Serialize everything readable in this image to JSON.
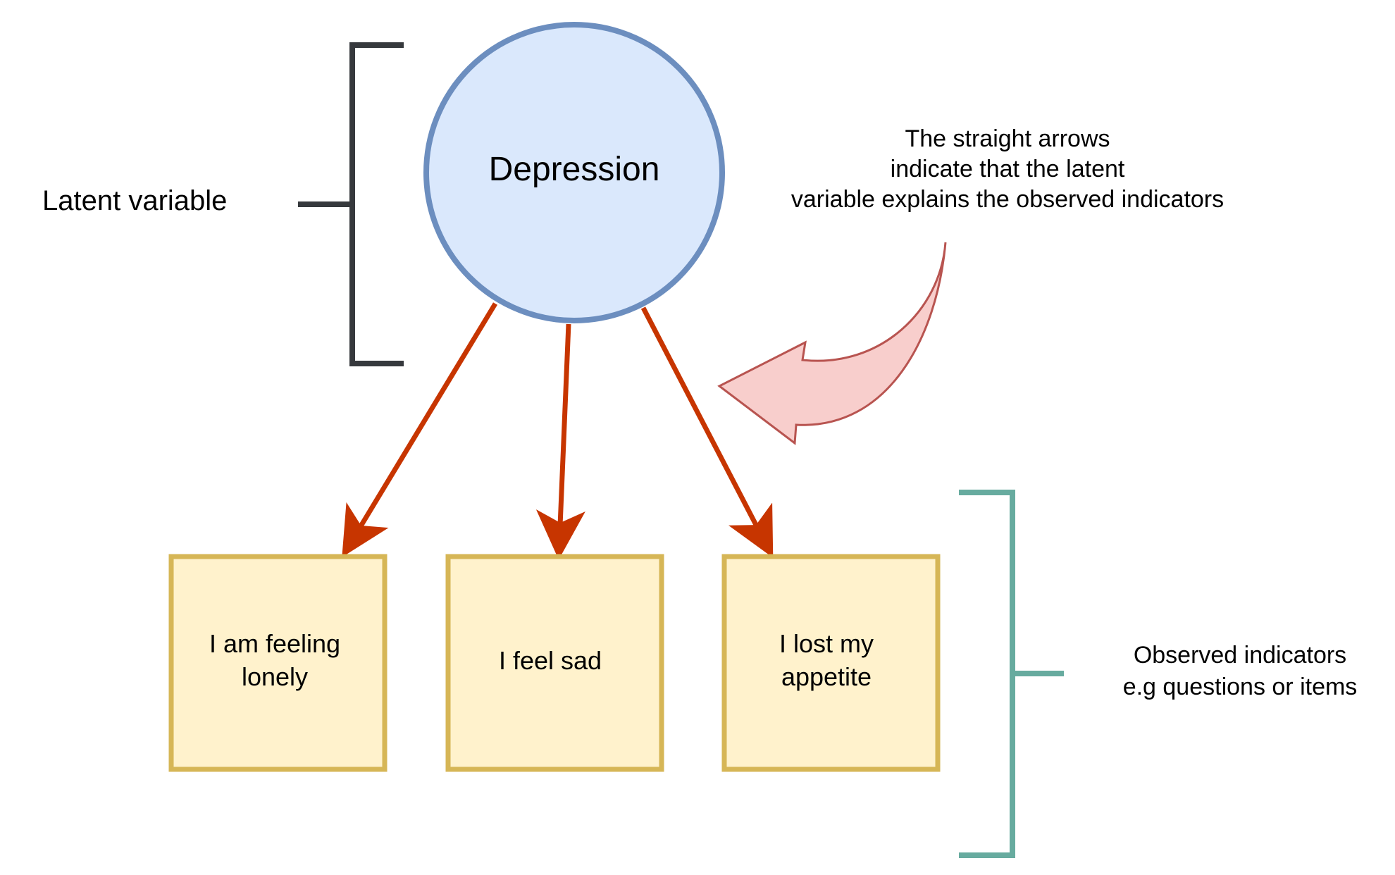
{
  "latent": {
    "label": "Latent variable",
    "node_label": "Depression"
  },
  "annotation": {
    "lines": [
      "The straight arrows",
      "indicate that the latent",
      "variable explains the observed indicators"
    ]
  },
  "indicators": [
    {
      "lines": [
        "I am feeling",
        "lonely"
      ]
    },
    {
      "lines": [
        "I feel sad"
      ]
    },
    {
      "lines": [
        "I lost my",
        "appetite"
      ]
    }
  ],
  "observed": {
    "lines": [
      "Observed  indicators",
      "e.g questions or items"
    ]
  },
  "colors": {
    "circle_fill": "#dae8fc",
    "circle_stroke": "#6c8ebf",
    "box_fill": "#fff2cc",
    "box_stroke": "#d6b656",
    "arrow": "#c73500",
    "callout_fill": "#f8cecc",
    "callout_stroke": "#b85450",
    "latent_bracket": "#36393d",
    "observed_bracket": "#67ab9f"
  },
  "icons": {
    "callout": "curved-callout-arrow-icon",
    "latent_bracket": "left-bracket-icon",
    "observed_bracket": "right-bracket-icon"
  }
}
